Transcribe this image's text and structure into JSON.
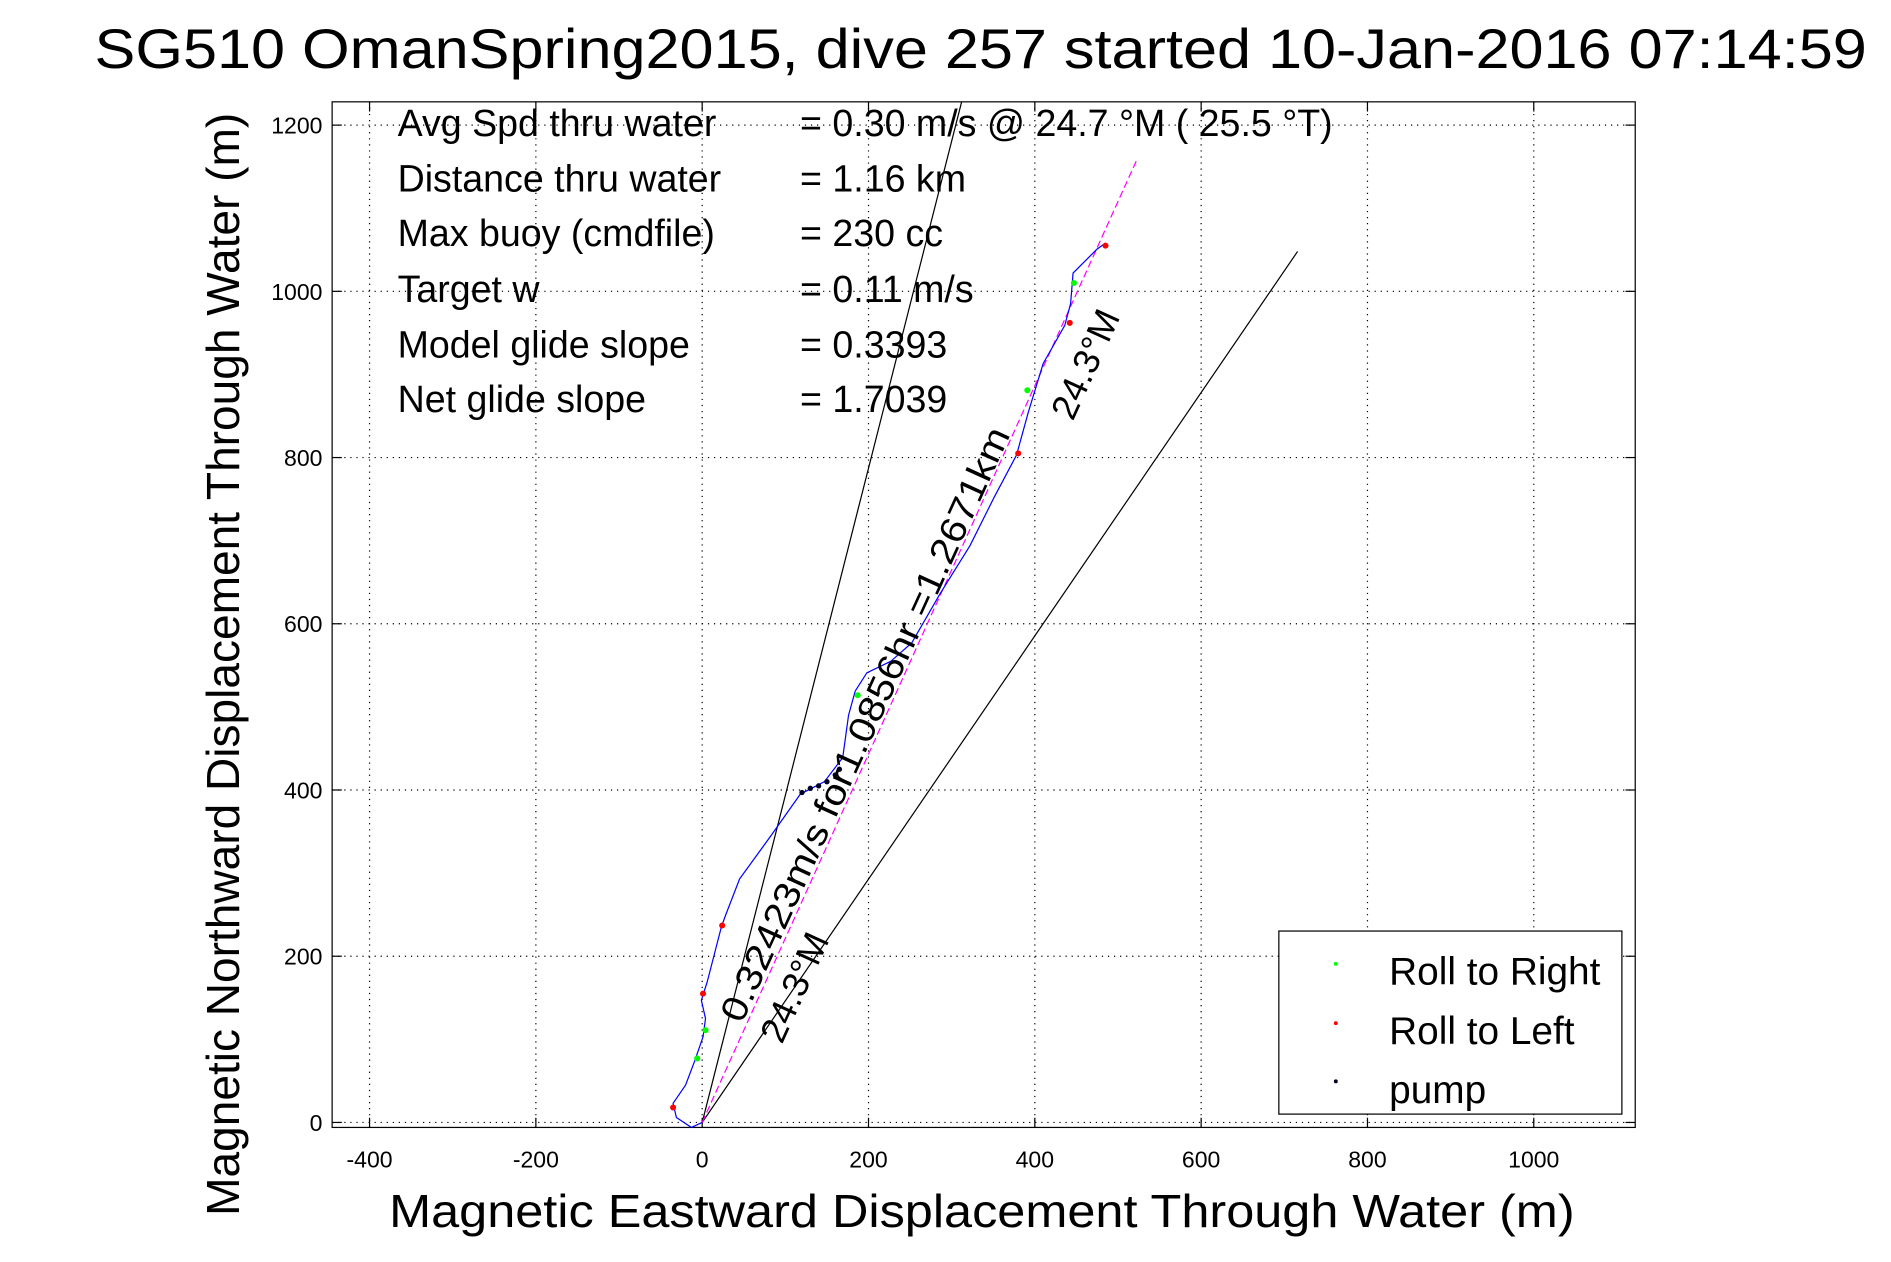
{
  "chart_data": {
    "type": "line",
    "title": "SG510 OmanSpring2015, dive 257 started 10-Jan-2016 07:14:59",
    "xlabel": "Magnetic Eastward Displacement Through Water (m)",
    "ylabel": "Magnetic Northward Displacement Through Water (m)",
    "xlim": [
      -445,
      1122
    ],
    "ylim": [
      -6,
      1228
    ],
    "xticks": [
      -400,
      -200,
      0,
      200,
      400,
      600,
      800,
      1000
    ],
    "yticks": [
      0,
      200,
      400,
      600,
      800,
      1000,
      1200
    ],
    "grid": true,
    "stats": [
      {
        "label": "Avg Spd thru water",
        "value": "=  0.30 m/s @  24.7 °M ( 25.5 °T)"
      },
      {
        "label": "Distance thru water",
        "value": "=  1.16 km"
      },
      {
        "label": "Max buoy (cmdfile)",
        "value": "= 230 cc"
      },
      {
        "label": "Target w",
        "value": "= 0.11 m/s"
      },
      {
        "label": "Model glide slope",
        "value": "= 0.3393"
      },
      {
        "label": "Net glide slope",
        "value": "= 1.7039"
      }
    ],
    "annotations": {
      "current": "0.32423m/s for1.0856hr =1.2671km",
      "heading_low": "24.3°M",
      "heading_high": "24.3°M"
    },
    "reference_lines": [
      {
        "name": "heading-bound-left",
        "color": "#000000",
        "x": [
          0,
          312
        ],
        "y": [
          0,
          1228
        ]
      },
      {
        "name": "heading-bound-right",
        "color": "#000000",
        "x": [
          0,
          716
        ],
        "y": [
          0,
          1048
        ]
      },
      {
        "name": "current-vector",
        "color": "#ff00ff",
        "dashed": true,
        "x": [
          0,
          523
        ],
        "y": [
          0,
          1159
        ]
      }
    ],
    "series": [
      {
        "name": "track",
        "color": "#0000ff",
        "x": [
          0,
          -13,
          -31,
          -35,
          -20,
          -9,
          1,
          4,
          -1,
          6,
          23,
          28,
          45,
          82,
          118,
          147,
          169,
          176,
          184,
          198,
          227,
          252,
          286,
          322,
          351,
          378,
          392,
          410,
          436,
          443,
          446,
          475,
          485
        ],
        "y": [
          0,
          -6,
          6,
          23,
          45,
          74,
          103,
          125,
          147,
          169,
          235,
          249,
          293,
          344,
          395,
          410,
          439,
          490,
          519,
          541,
          555,
          577,
          636,
          694,
          752,
          803,
          854,
          913,
          959,
          985,
          1022,
          1051,
          1058
        ]
      },
      {
        "name": "Roll to Right",
        "color": "#00ff00",
        "x": [
          -6,
          4,
          187,
          391,
          447
        ],
        "y": [
          77,
          111,
          514,
          881,
          1010
        ]
      },
      {
        "name": "Roll to Left",
        "color": "#ff0000",
        "x": [
          -35,
          1,
          24,
          380,
          442,
          485
        ],
        "y": [
          18,
          155,
          237,
          805,
          962,
          1055
        ]
      },
      {
        "name": "pump",
        "color": "#000020",
        "x": [
          120,
          130,
          140,
          150,
          160,
          165
        ],
        "y": [
          397,
          402,
          405,
          410,
          418,
          425
        ]
      }
    ],
    "legend": {
      "placement": "bottom-right",
      "entries": [
        {
          "label": "Roll to Right",
          "color": "#00ff00"
        },
        {
          "label": "Roll to Left",
          "color": "#ff0000"
        },
        {
          "label": "pump",
          "color": "#000020"
        }
      ]
    }
  }
}
